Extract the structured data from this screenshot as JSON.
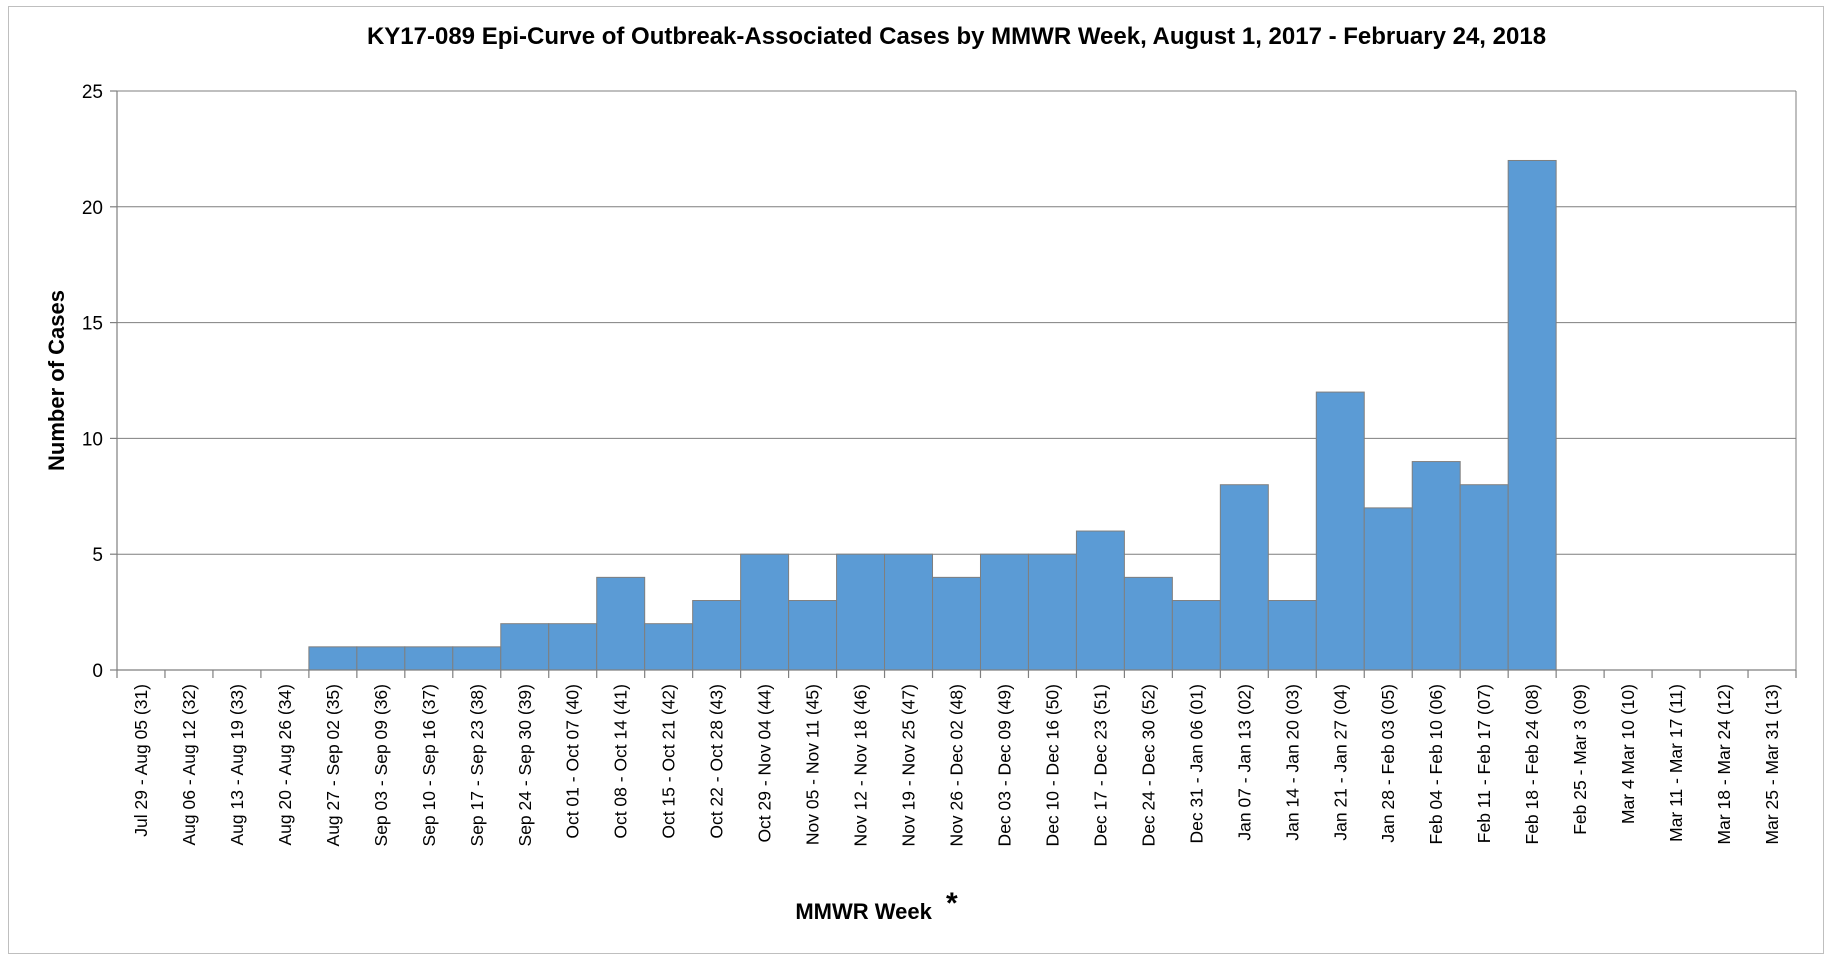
{
  "chart_data": {
    "type": "bar",
    "title": "KY17-089 Epi-Curve of Outbreak-Associated Cases by MMWR Week, August 1, 2017 - February 24, 2018",
    "xlabel": "MMWR Week",
    "xlabel_marker": "*",
    "ylabel": "Number of Cases",
    "ylim": [
      0,
      25
    ],
    "yticks": [
      0,
      5,
      10,
      15,
      20,
      25
    ],
    "grid": true,
    "legend": "none",
    "bar_color": "#5b9bd5",
    "categories": [
      "Jul 29 - Aug 05 (31)",
      "Aug 06 - Aug 12 (32)",
      "Aug 13 - Aug 19 (33)",
      "Aug 20 - Aug 26 (34)",
      "Aug 27 - Sep 02 (35)",
      "Sep 03 - Sep 09 (36)",
      "Sep 10 - Sep 16 (37)",
      "Sep 17 - Sep 23 (38)",
      "Sep 24 - Sep 30 (39)",
      "Oct 01 - Oct 07 (40)",
      "Oct 08 - Oct 14 (41)",
      "Oct 15 - Oct 21 (42)",
      "Oct 22 - Oct 28 (43)",
      "Oct 29 - Nov 04 (44)",
      "Nov 05 - Nov 11 (45)",
      "Nov 12 - Nov 18 (46)",
      "Nov 19 - Nov 25 (47)",
      "Nov 26 - Dec 02 (48)",
      "Dec 03 - Dec 09 (49)",
      "Dec 10 - Dec 16 (50)",
      "Dec 17 - Dec 23 (51)",
      "Dec 24 - Dec 30 (52)",
      "Dec 31 - Jan 06 (01)",
      "Jan 07 - Jan 13 (02)",
      "Jan 14 - Jan 20 (03)",
      "Jan 21 - Jan 27 (04)",
      "Jan 28 - Feb 03 (05)",
      "Feb 04 - Feb 10 (06)",
      "Feb 11 - Feb 17 (07)",
      "Feb 18 - Feb 24 (08)",
      "Feb 25 - Mar 3 (09)",
      "Mar 4 Mar 10 (10)",
      "Mar 11 - Mar 17 (11)",
      "Mar 18 - Mar 24 (12)",
      "Mar 25 - Mar 31 (13)"
    ],
    "values": [
      0,
      0,
      0,
      0,
      1,
      1,
      1,
      1,
      2,
      2,
      4,
      2,
      3,
      5,
      3,
      5,
      5,
      4,
      5,
      5,
      6,
      4,
      3,
      8,
      3,
      12,
      7,
      9,
      8,
      22,
      0,
      0,
      0,
      0,
      0
    ]
  }
}
